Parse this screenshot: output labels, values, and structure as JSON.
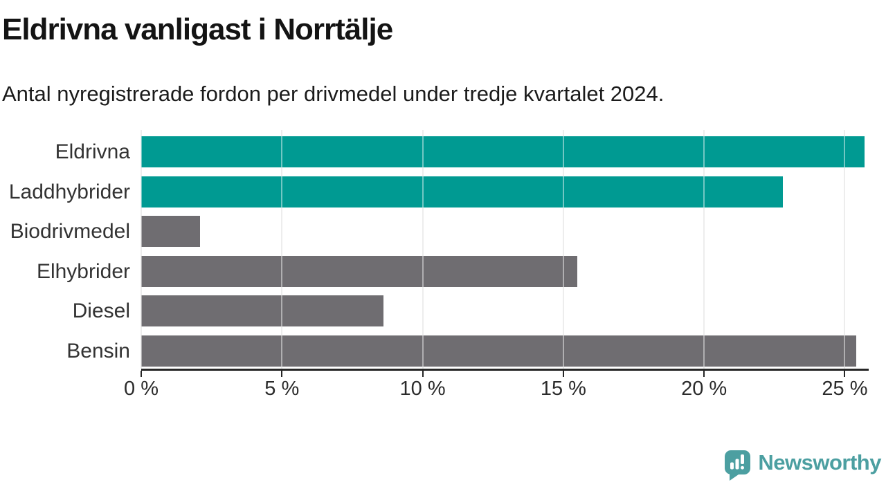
{
  "header": {
    "title": "Eldrivna vanligast i Norrtälje",
    "subtitle": "Antal nyregistrerade fordon per drivmedel under tredje kvartalet 2024."
  },
  "chart_data": {
    "type": "bar",
    "orientation": "horizontal",
    "title": "Eldrivna vanligast i Norrtälje",
    "subtitle": "Antal nyregistrerade fordon per drivmedel under tredje kvartalet 2024.",
    "categories": [
      "Eldrivna",
      "Laddhybrider",
      "Biodrivmedel",
      "Elhybrider",
      "Diesel",
      "Bensin"
    ],
    "values": [
      25.7,
      22.8,
      2.1,
      15.5,
      8.6,
      25.4
    ],
    "value_unit": "%",
    "highlighted_categories": [
      "Eldrivna",
      "Laddhybrider"
    ],
    "bar_colors": [
      "#009a92",
      "#009a92",
      "#6f6d71",
      "#6f6d71",
      "#6f6d71",
      "#6f6d71"
    ],
    "xlim": [
      0,
      25.8
    ],
    "x_ticks": [
      0,
      5,
      10,
      15,
      20,
      25
    ],
    "x_tick_labels": [
      "0 %",
      "5 %",
      "10 %",
      "15 %",
      "20 %",
      "25 %"
    ],
    "grid": true,
    "legend": false,
    "xlabel": "",
    "ylabel": ""
  },
  "branding": {
    "logo_text": "Newsworthy",
    "logo_icon": "speech-bubble-bar-chart-icon",
    "logo_color": "#4c9fa1"
  },
  "colors": {
    "highlight": "#009a92",
    "neutral": "#6f6d71",
    "title_text": "#141414",
    "label_text": "#333333",
    "gridline": "#dedede",
    "axis": "#262626",
    "background": "#ffffff"
  }
}
